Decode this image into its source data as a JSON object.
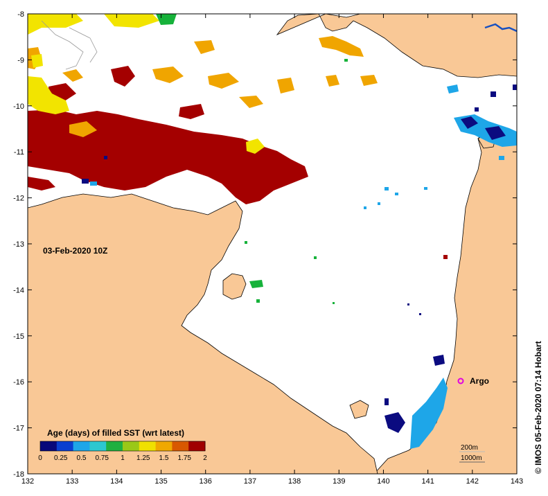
{
  "map": {
    "timestamp_label": "03-Feb-2020 10Z",
    "credit": "© IMOS 05-Feb-2020 07:14 Hobart",
    "argo_label": "Argo",
    "contour_labels": [
      "200m",
      "1000m"
    ],
    "x_ticks": [
      "132",
      "133",
      "134",
      "135",
      "136",
      "137",
      "138",
      "139",
      "140",
      "141",
      "142",
      "143"
    ],
    "y_ticks": [
      "-8",
      "-9",
      "-10",
      "-11",
      "-12",
      "-13",
      "-14",
      "-15",
      "-16",
      "-17",
      "-18"
    ],
    "colorbar": {
      "title": "Age (days) of filled SST (wrt latest)",
      "ticks": [
        "0",
        "0.25",
        "0.5",
        "0.75",
        "1",
        "1.25",
        "1.5",
        "1.75",
        "2"
      ],
      "colors": [
        "#08087a",
        "#0a3fd0",
        "#1ea6e8",
        "#2cc7d0",
        "#20b040",
        "#9ac817",
        "#f0e000",
        "#f0a800",
        "#d85800",
        "#a00000"
      ]
    },
    "colors": {
      "land": "#f9c896",
      "sea": "#ffffff",
      "age_0": "#0b0b80",
      "age_fresh_cyan": "#1ea6e8",
      "age_green": "#16b23a",
      "age_yellow": "#f2e400",
      "age_orange": "#f0a500",
      "age_old": "#a40000",
      "argo": "#e000e0"
    }
  }
}
